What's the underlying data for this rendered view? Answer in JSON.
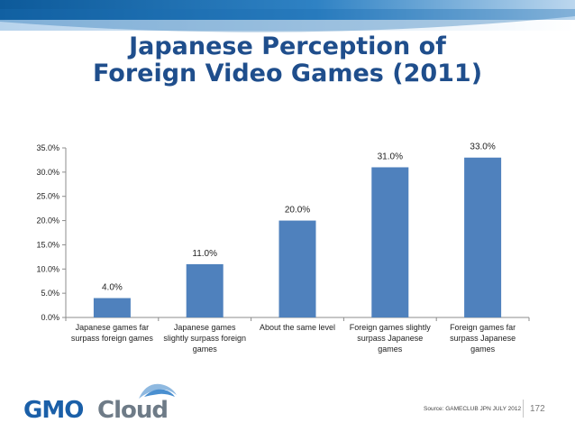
{
  "title_line1": "Japanese Perception of",
  "title_line2": "Foreign Video Games (2011)",
  "chart_data": {
    "type": "bar",
    "categories": [
      [
        "Japanese games far",
        "surpass foreign games"
      ],
      [
        "Japanese games",
        "slightly surpass foreign",
        "games"
      ],
      [
        "About the same level"
      ],
      [
        "Foreign games slightly",
        "surpass Japanese",
        "games"
      ],
      [
        "Foreign games far",
        "surpass Japanese",
        "games"
      ]
    ],
    "values": [
      4.0,
      11.0,
      20.0,
      31.0,
      33.0
    ],
    "data_labels": [
      "4.0%",
      "11.0%",
      "20.0%",
      "31.0%",
      "33.0%"
    ],
    "yticks": [
      "0.0%",
      "5.0%",
      "10.0%",
      "15.0%",
      "20.0%",
      "25.0%",
      "30.0%",
      "35.0%"
    ],
    "ylim": [
      0,
      35
    ],
    "grid": false,
    "bar_color": "#4f81bd"
  },
  "footer": {
    "logo_part1": "GMO",
    "logo_part2": "Cloud",
    "source": "Source: GAMECLUB JPN JULY 2012",
    "page_number": "172"
  },
  "colors": {
    "title": "#1f4e8c",
    "band_dark": "#0d5a9a",
    "logo_blue": "#1a5fa8",
    "logo_gray": "#6e7b87"
  }
}
